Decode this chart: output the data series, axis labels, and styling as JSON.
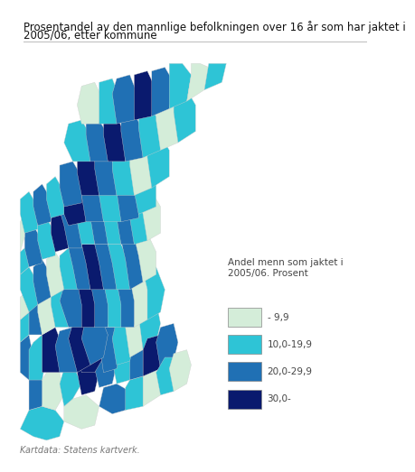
{
  "title_line1": "Prosentandel av den mannlige befolkningen over 16 år som har jaktet i",
  "title_line2": "2005/06, etter kommune",
  "title_fontsize": 8.5,
  "legend_title": "Andel menn som jaktet i\n2005/06. Prosent",
  "legend_labels": [
    "- 9,9",
    "10,0-19,9",
    "20,0-29,9",
    "30,0-"
  ],
  "legend_colors": [
    "#d4edd9",
    "#2ec4d6",
    "#2070b4",
    "#0a1a6e"
  ],
  "footer": "Kartdata: Statens kartverk.",
  "footer_fontsize": 7,
  "legend_fontsize": 7.5,
  "legend_title_fontsize": 7.5,
  "bg_color": "#ffffff",
  "title_separator_color": "#bbbbbb"
}
